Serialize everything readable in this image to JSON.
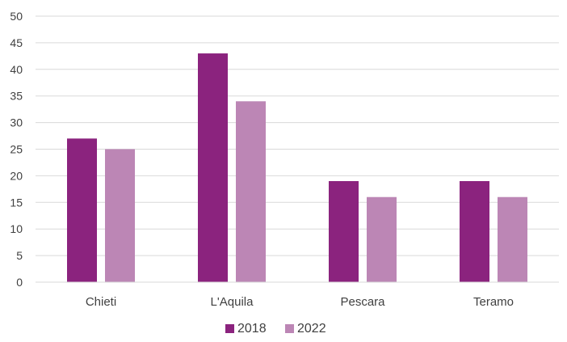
{
  "chart_data": {
    "type": "bar",
    "title": "",
    "xlabel": "",
    "ylabel": "",
    "categories": [
      "Chieti",
      "L'Aquila",
      "Pescara",
      "Teramo"
    ],
    "series": [
      {
        "name": "2018",
        "color": "#8B237E",
        "values": [
          27,
          43,
          19,
          19
        ]
      },
      {
        "name": "2022",
        "color": "#BC86B5",
        "values": [
          25,
          34,
          16,
          16
        ]
      }
    ],
    "ylim": [
      0,
      50
    ],
    "yticks": [
      "0",
      "5",
      "10",
      "15",
      "20",
      "25",
      "30",
      "35",
      "40",
      "45",
      "50"
    ],
    "grid": true,
    "legend": "bottom-center"
  }
}
